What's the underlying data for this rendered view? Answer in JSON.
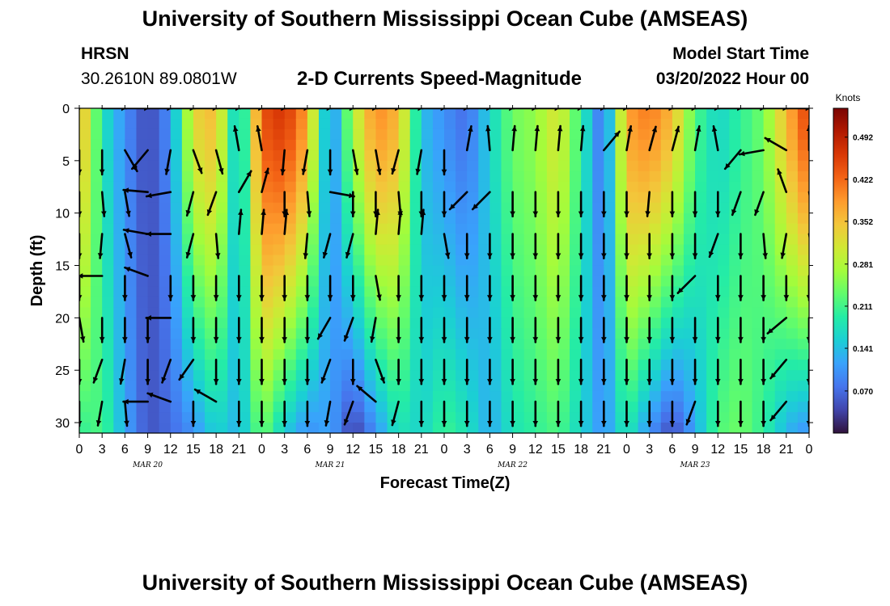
{
  "header": {
    "title": "University of Southern Mississippi Ocean Cube (AMSEAS)",
    "station": "HRSN",
    "coordinates": "30.2610N  89.0801W",
    "chart_title": "2-D Currents Speed-Magnitude",
    "model_start_label": "Model Start Time",
    "model_start_value": "03/20/2022 Hour 00"
  },
  "footer": {
    "title": "University of Southern Mississippi Ocean Cube (AMSEAS)"
  },
  "chart_data": {
    "type": "heatmap",
    "title": "2-D Currents Speed-Magnitude",
    "xlabel": "Forecast Time(Z)",
    "ylabel": "Depth (ft)",
    "x_tick_labels": [
      "0",
      "3",
      "6",
      "9",
      "12",
      "15",
      "18",
      "21",
      "0",
      "3",
      "6",
      "9",
      "12",
      "15",
      "18",
      "21",
      "0",
      "3",
      "6",
      "9",
      "12",
      "15",
      "18",
      "21",
      "0",
      "3",
      "6",
      "9",
      "12",
      "15",
      "18",
      "21",
      "0"
    ],
    "date_labels": [
      {
        "hour": 9,
        "text": "MAR 20"
      },
      {
        "hour": 33,
        "text": "MAR 21"
      },
      {
        "hour": 57,
        "text": "MAR 22"
      },
      {
        "hour": 81,
        "text": "MAR 23"
      }
    ],
    "xlim_hours": [
      0,
      96
    ],
    "y_ticks": [
      0,
      5,
      10,
      15,
      20,
      25,
      30
    ],
    "ylim_ft": [
      0,
      31
    ],
    "colorbar": {
      "label": "Knots",
      "ticks": [
        0.07,
        0.141,
        0.211,
        0.281,
        0.352,
        0.422,
        0.492
      ],
      "tick_labels": [
        "0.070",
        "0.141",
        "0.211",
        "0.281",
        "0.352",
        "0.422",
        "0.492"
      ],
      "range": [
        0,
        0.54
      ],
      "colors": [
        "#30123b",
        "#4145ab",
        "#4675ed",
        "#39a2fc",
        "#1bcfd4",
        "#24eca6",
        "#61fc6c",
        "#a4fc3b",
        "#d1e834",
        "#f3c63a",
        "#fe9b2d",
        "#f36315",
        "#d93806",
        "#b11901",
        "#7a0402"
      ]
    },
    "speed_profile": {
      "comment_free": true,
      "hours": [
        0,
        3,
        6,
        9,
        12,
        15,
        18,
        21,
        24,
        27,
        30,
        33,
        36,
        39,
        42,
        45,
        48,
        51,
        54,
        57,
        60,
        63,
        66,
        69,
        72,
        75,
        78,
        81,
        84,
        87,
        90,
        93,
        96
      ],
      "surface_knots": [
        0.38,
        0.18,
        0.1,
        0.04,
        0.1,
        0.33,
        0.36,
        0.12,
        0.44,
        0.47,
        0.38,
        0.08,
        0.28,
        0.4,
        0.36,
        0.14,
        0.1,
        0.07,
        0.16,
        0.24,
        0.26,
        0.32,
        0.2,
        0.06,
        0.38,
        0.41,
        0.36,
        0.22,
        0.16,
        0.2,
        0.24,
        0.36,
        0.46
      ],
      "bottom_knots": [
        0.2,
        0.22,
        0.12,
        0.05,
        0.07,
        0.1,
        0.16,
        0.13,
        0.24,
        0.15,
        0.1,
        0.12,
        0.03,
        0.1,
        0.18,
        0.16,
        0.21,
        0.18,
        0.12,
        0.18,
        0.2,
        0.22,
        0.16,
        0.1,
        0.19,
        0.1,
        0.04,
        0.12,
        0.22,
        0.24,
        0.2,
        0.13,
        0.1
      ]
    },
    "arrow_depths_ft": [
      0,
      4,
      8,
      12,
      16,
      20,
      24,
      28
    ],
    "arrow_hours": [
      0,
      3,
      6,
      9,
      12,
      15,
      18,
      21,
      24,
      27,
      30,
      33,
      36,
      39,
      42,
      45,
      48,
      51,
      54,
      57,
      60,
      63,
      66,
      69,
      72,
      75,
      78,
      81,
      84,
      87,
      90,
      93,
      96
    ],
    "arrow_directions_deg": [
      [
        200,
        90,
        90,
        90,
        90,
        90,
        90,
        90,
        90,
        90,
        90,
        90,
        90,
        90,
        90,
        90,
        90,
        90,
        90,
        90,
        90,
        90,
        90,
        90,
        90,
        90,
        90,
        90,
        90,
        90,
        90,
        90,
        90
      ],
      [
        180,
        180,
        150,
        220,
        190,
        160,
        165,
        350,
        350,
        185,
        190,
        180,
        170,
        170,
        195,
        190,
        180,
        10,
        355,
        5,
        5,
        5,
        5,
        40,
        10,
        15,
        15,
        10,
        350,
        220,
        260,
        300,
        0
      ],
      [
        180,
        175,
        170,
        275,
        260,
        195,
        200,
        30,
        15,
        180,
        175,
        100,
        180,
        180,
        175,
        180,
        180,
        225,
        225,
        180,
        180,
        180,
        180,
        180,
        180,
        185,
        180,
        180,
        180,
        200,
        200,
        340,
        170
      ],
      [
        180,
        185,
        165,
        280,
        270,
        195,
        175,
        5,
        5,
        5,
        185,
        195,
        195,
        5,
        5,
        5,
        170,
        180,
        180,
        180,
        180,
        180,
        180,
        180,
        180,
        180,
        180,
        180,
        200,
        180,
        175,
        190,
        170
      ],
      [
        180,
        270,
        180,
        290,
        180,
        180,
        180,
        180,
        180,
        180,
        180,
        180,
        180,
        170,
        180,
        180,
        180,
        180,
        180,
        180,
        180,
        180,
        180,
        180,
        180,
        180,
        180,
        225,
        180,
        180,
        180,
        180,
        180
      ],
      [
        170,
        180,
        180,
        180,
        270,
        180,
        180,
        180,
        180,
        180,
        180,
        210,
        200,
        190,
        180,
        180,
        180,
        180,
        180,
        180,
        180,
        180,
        180,
        180,
        180,
        180,
        180,
        180,
        180,
        180,
        180,
        230,
        180
      ],
      [
        180,
        200,
        190,
        180,
        200,
        215,
        180,
        180,
        180,
        180,
        180,
        200,
        180,
        160,
        180,
        180,
        180,
        180,
        180,
        180,
        180,
        180,
        180,
        180,
        180,
        180,
        180,
        180,
        180,
        180,
        180,
        220,
        180
      ],
      [
        180,
        190,
        175,
        270,
        290,
        180,
        300,
        180,
        180,
        180,
        180,
        190,
        200,
        310,
        195,
        180,
        180,
        180,
        180,
        180,
        180,
        180,
        180,
        180,
        180,
        180,
        180,
        200,
        180,
        180,
        180,
        220,
        180
      ]
    ]
  }
}
